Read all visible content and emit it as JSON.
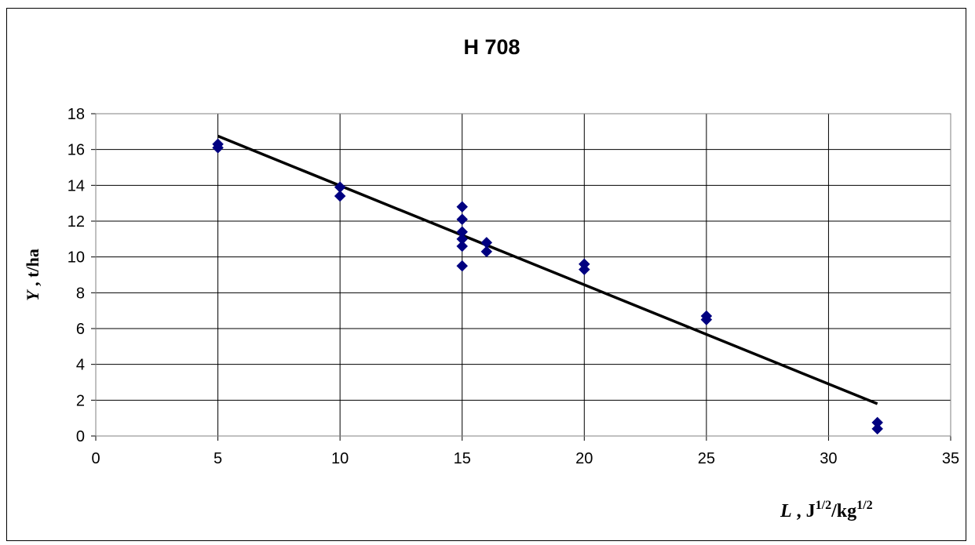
{
  "chart_data": {
    "type": "scatter",
    "title": "H 708",
    "ylabel": {
      "var": "Y",
      "rest": " , t/ha"
    },
    "xlabel": {
      "var": "L",
      "parts": [
        " , J",
        "1/2",
        "/kg",
        "1/2"
      ]
    },
    "xlim": [
      0,
      35
    ],
    "ylim": [
      0,
      18
    ],
    "x_ticks": [
      0,
      5,
      10,
      15,
      20,
      25,
      30,
      35
    ],
    "y_ticks": [
      0,
      2,
      4,
      6,
      8,
      10,
      12,
      14,
      16,
      18
    ],
    "grid": true,
    "marker_color": "#000080",
    "line_color": "#000000",
    "points": [
      {
        "x": 5,
        "y": 16.3
      },
      {
        "x": 5,
        "y": 16.1
      },
      {
        "x": 10,
        "y": 13.9
      },
      {
        "x": 10,
        "y": 13.4
      },
      {
        "x": 15,
        "y": 12.8
      },
      {
        "x": 15,
        "y": 12.1
      },
      {
        "x": 15,
        "y": 11.4
      },
      {
        "x": 15,
        "y": 11.0
      },
      {
        "x": 15,
        "y": 10.6
      },
      {
        "x": 15,
        "y": 9.5
      },
      {
        "x": 16,
        "y": 10.8
      },
      {
        "x": 16,
        "y": 10.3
      },
      {
        "x": 20,
        "y": 9.6
      },
      {
        "x": 20,
        "y": 9.3
      },
      {
        "x": 25,
        "y": 6.7
      },
      {
        "x": 25,
        "y": 6.5
      },
      {
        "x": 32,
        "y": 0.75
      },
      {
        "x": 32,
        "y": 0.4
      }
    ],
    "trendline": [
      {
        "x": 5,
        "y": 16.75
      },
      {
        "x": 32,
        "y": 1.8
      }
    ]
  }
}
